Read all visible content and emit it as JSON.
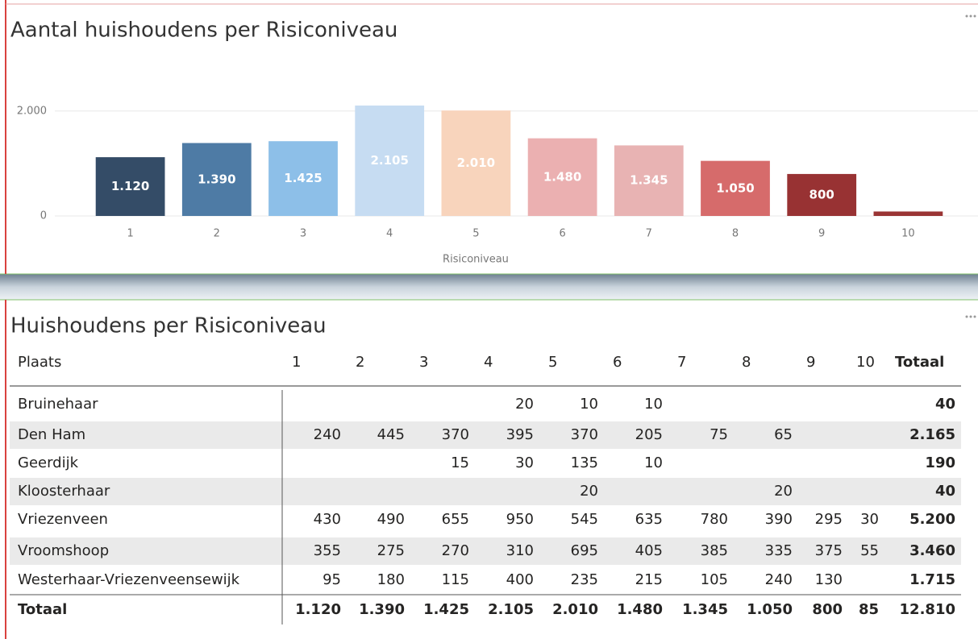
{
  "chart_data": {
    "type": "bar",
    "title": "Aantal huishoudens per Risiconiveau",
    "categories": [
      "1",
      "2",
      "3",
      "4",
      "5",
      "6",
      "7",
      "8",
      "9",
      "10"
    ],
    "values": [
      1120,
      1390,
      1425,
      2105,
      2010,
      1480,
      1345,
      1050,
      800,
      85
    ],
    "value_labels": [
      "1.120",
      "1.390",
      "1.425",
      "2.105",
      "2.010",
      "1.480",
      "1.345",
      "1.050",
      "800",
      null
    ],
    "colors": [
      "#344c67",
      "#4e7ba5",
      "#8dbfe8",
      "#c6dcf2",
      "#f8d4bc",
      "#ebb0b1",
      "#e8b3b3",
      "#d66b6b",
      "#983233",
      "#9a3434"
    ],
    "xlabel": "Risiconiveau",
    "ylim": [
      0,
      2350
    ],
    "yticks": [
      0,
      {
        "value": 2000,
        "label": "2.000"
      }
    ],
    "grid": true
  },
  "table": {
    "title": "Huishoudens per Risiconiveau",
    "columns": [
      "Plaats",
      "1",
      "2",
      "3",
      "4",
      "5",
      "6",
      "7",
      "8",
      "9",
      "10",
      "Totaal"
    ],
    "rows": [
      [
        "Bruinehaar",
        null,
        null,
        null,
        "20",
        "10",
        "10",
        null,
        null,
        null,
        null,
        "40"
      ],
      [
        "Den Ham",
        "240",
        "445",
        "370",
        "395",
        "370",
        "205",
        "75",
        "65",
        null,
        null,
        "2.165"
      ],
      [
        "Geerdijk",
        null,
        null,
        "15",
        "30",
        "135",
        "10",
        null,
        null,
        null,
        null,
        "190"
      ],
      [
        "Kloosterhaar",
        null,
        null,
        null,
        null,
        "20",
        null,
        null,
        "20",
        null,
        null,
        "40"
      ],
      [
        "Vriezenveen",
        "430",
        "490",
        "655",
        "950",
        "545",
        "635",
        "780",
        "390",
        "295",
        "30",
        "5.200"
      ],
      [
        "Vroomshoop",
        "355",
        "275",
        "270",
        "310",
        "695",
        "405",
        "385",
        "335",
        "375",
        "55",
        "3.460"
      ],
      [
        "Westerhaar-Vriezenveensewijk",
        "95",
        "180",
        "115",
        "400",
        "235",
        "215",
        "105",
        "240",
        "130",
        null,
        "1.715"
      ],
      [
        "Totaal",
        "1.120",
        "1.390",
        "1.425",
        "2.105",
        "2.010",
        "1.480",
        "1.345",
        "1.050",
        "800",
        "85",
        "12.810"
      ]
    ]
  }
}
